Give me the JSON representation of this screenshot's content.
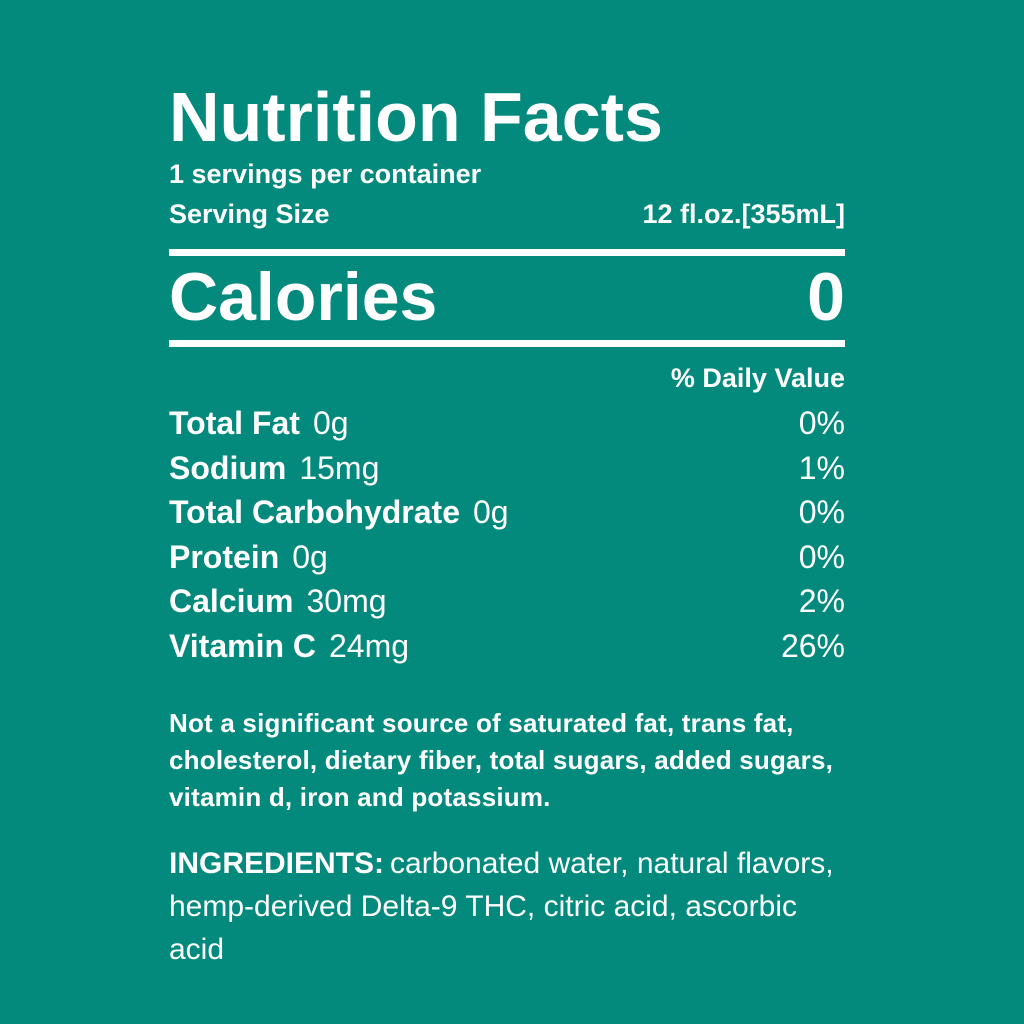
{
  "label": {
    "bg_color": "#038A7D",
    "text_color": "#FFFFFF",
    "title": "Nutrition Facts",
    "servings_per_container": "1 servings per container",
    "serving_size_label": "Serving Size",
    "serving_size_value": "12 fl.oz.[355mL]",
    "calories_label": "Calories",
    "calories_value": "0",
    "daily_value_header": "% Daily Value",
    "nutrients": [
      {
        "name": "Total Fat",
        "amount": "0g",
        "dv": "0%"
      },
      {
        "name": "Sodium",
        "amount": "15mg",
        "dv": "1%"
      },
      {
        "name": "Total Carbohydrate",
        "amount": "0g",
        "dv": "0%"
      },
      {
        "name": "Protein",
        "amount": "0g",
        "dv": "0%"
      },
      {
        "name": "Calcium",
        "amount": "30mg",
        "dv": "2%"
      },
      {
        "name": "Vitamin C",
        "amount": "24mg",
        "dv": "26%"
      }
    ],
    "footnote": "Not a significant source of saturated fat, trans fat, cholesterol, dietary fiber, total sugars, added sugars, vitamin d, iron and potassium.",
    "ingredients_label": "INGREDIENTS:",
    "ingredients_text": "carbonated water, natural flavors, hemp-derived Delta-9 THC, citric acid, ascorbic acid"
  }
}
